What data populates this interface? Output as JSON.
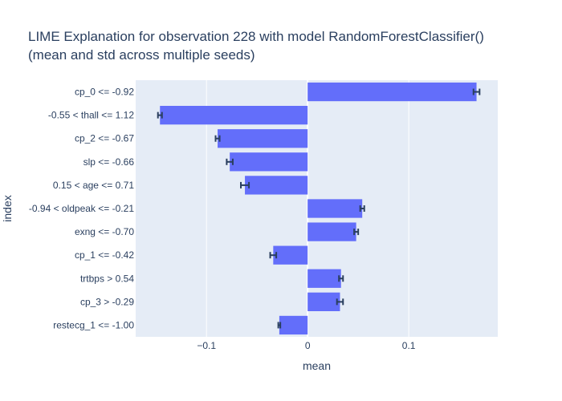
{
  "chart_data": {
    "type": "bar",
    "orientation": "horizontal",
    "title_line1": "LIME Explanation for observation 228 with model RandomForestClassifier()",
    "title_line2": "(mean and std across multiple seeds)",
    "xlabel": "mean",
    "ylabel": "index",
    "xlim": [
      -0.17,
      0.188
    ],
    "xticks": [
      -0.1,
      0,
      0.1
    ],
    "xtick_labels": [
      "−0.1",
      "0",
      "0.1"
    ],
    "grid": true,
    "bar_color": "#636efa",
    "plot_bg": "#e5ecf6",
    "errorbar_color": "#2a3f5f",
    "categories": [
      "cp_0 <= -0.92",
      "-0.55 < thall <= 1.12",
      "cp_2 <= -0.67",
      "slp <= -0.66",
      "0.15 < age <= 0.71",
      "-0.94 < oldpeak <= -0.21",
      "exng <= -0.70",
      "cp_1 <= -0.42",
      "trtbps > 0.54",
      "cp_3 > -0.29",
      "restecg_1 <= -1.00"
    ],
    "values": [
      0.167,
      -0.146,
      -0.089,
      -0.077,
      -0.062,
      0.054,
      0.048,
      -0.034,
      0.033,
      0.032,
      -0.028
    ],
    "std": [
      0.003,
      0.002,
      0.002,
      0.003,
      0.004,
      0.002,
      0.002,
      0.003,
      0.002,
      0.003,
      0.001
    ]
  }
}
